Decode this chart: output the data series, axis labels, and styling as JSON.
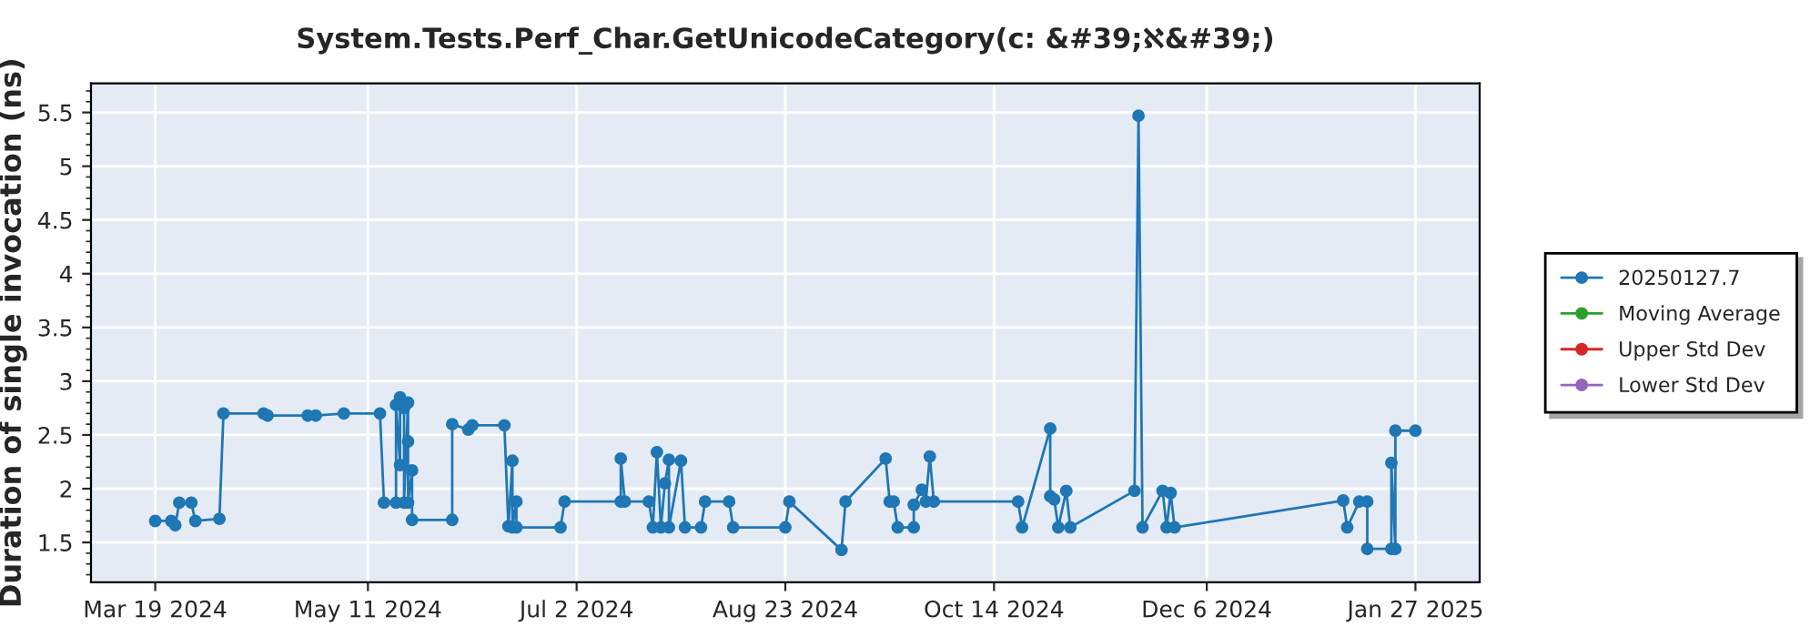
{
  "chart_data": {
    "type": "line",
    "title": "System.Tests.Perf_Char.GetUnicodeCategory(c: &#39;ℵ&#39;)",
    "ylabel": "Duration of single invocation (ns)",
    "x": [
      "2024-03-19",
      "2024-03-23",
      "2024-03-24",
      "2024-03-25",
      "2024-03-28",
      "2024-03-29",
      "2024-04-04",
      "2024-04-05",
      "2024-04-15",
      "2024-04-16",
      "2024-04-26",
      "2024-04-28",
      "2024-05-05",
      "2024-05-14",
      "2024-05-15",
      "2024-05-18",
      "2024-05-18",
      "2024-05-19",
      "2024-05-19",
      "2024-05-20",
      "2024-05-20",
      "2024-05-21",
      "2024-05-21",
      "2024-05-21",
      "2024-05-22",
      "2024-05-22",
      "2024-06-01",
      "2024-06-01",
      "2024-06-05",
      "2024-06-06",
      "2024-06-14",
      "2024-06-15",
      "2024-06-16",
      "2024-06-16",
      "2024-06-17",
      "2024-06-17",
      "2024-06-28",
      "2024-06-29",
      "2024-07-13",
      "2024-07-13",
      "2024-07-14",
      "2024-07-20",
      "2024-07-21",
      "2024-07-22",
      "2024-07-23",
      "2024-07-24",
      "2024-07-25",
      "2024-07-25",
      "2024-07-28",
      "2024-07-29",
      "2024-08-02",
      "2024-08-03",
      "2024-08-09",
      "2024-08-10",
      "2024-08-23",
      "2024-08-24",
      "2024-09-06",
      "2024-09-07",
      "2024-09-17",
      "2024-09-18",
      "2024-09-19",
      "2024-09-20",
      "2024-09-24",
      "2024-09-24",
      "2024-09-26",
      "2024-09-27",
      "2024-09-28",
      "2024-09-29",
      "2024-10-20",
      "2024-10-21",
      "2024-10-28",
      "2024-10-28",
      "2024-10-29",
      "2024-10-30",
      "2024-11-01",
      "2024-11-02",
      "2024-11-18",
      "2024-11-19",
      "2024-11-20",
      "2024-11-25",
      "2024-11-26",
      "2024-11-27",
      "2024-11-28",
      "2025-01-09",
      "2025-01-10",
      "2025-01-13",
      "2025-01-15",
      "2025-01-15",
      "2025-01-21",
      "2025-01-21",
      "2025-01-22",
      "2025-01-22",
      "2025-01-27"
    ],
    "series": [
      {
        "name": "20250127.7",
        "color": "#1f77b4",
        "values": [
          1.7,
          1.7,
          1.66,
          1.87,
          1.87,
          1.7,
          1.72,
          2.7,
          2.7,
          2.68,
          2.68,
          2.68,
          2.7,
          2.7,
          1.87,
          1.87,
          2.78,
          2.22,
          2.85,
          2.75,
          1.87,
          2.8,
          2.44,
          1.87,
          2.17,
          1.71,
          1.71,
          2.6,
          2.55,
          2.59,
          2.59,
          1.65,
          2.26,
          1.64,
          1.88,
          1.64,
          1.64,
          1.88,
          1.88,
          2.28,
          1.88,
          1.88,
          1.64,
          2.34,
          1.64,
          2.05,
          2.27,
          1.64,
          2.26,
          1.64,
          1.64,
          1.88,
          1.88,
          1.64,
          1.64,
          1.88,
          1.43,
          1.88,
          2.28,
          1.88,
          1.88,
          1.64,
          1.64,
          1.85,
          1.99,
          1.88,
          2.3,
          1.88,
          1.88,
          1.64,
          2.56,
          1.93,
          1.9,
          1.64,
          1.98,
          1.64,
          1.98,
          5.47,
          1.64,
          1.98,
          1.64,
          1.96,
          1.64,
          1.89,
          1.64,
          1.88,
          1.88,
          1.44,
          1.44,
          2.24,
          1.44,
          2.54,
          2.54
        ]
      },
      {
        "name": "Moving Average",
        "color": "#2ca02c",
        "values": [
          null,
          null,
          null,
          null,
          null,
          null,
          null,
          null,
          null,
          null,
          null,
          null,
          null,
          null,
          null,
          null,
          null,
          null,
          null,
          null,
          null,
          null,
          null,
          null,
          null,
          null,
          null,
          null,
          null,
          null,
          null,
          null,
          null,
          null,
          null,
          null,
          null,
          null,
          null,
          null,
          null,
          null,
          null,
          null,
          null,
          null,
          null,
          null,
          null,
          null,
          null,
          null,
          null,
          null,
          null,
          null,
          null,
          null,
          null,
          null,
          null,
          null,
          null,
          null,
          null,
          null,
          null,
          null,
          null,
          null,
          null,
          null,
          null,
          null,
          null,
          null,
          null,
          null,
          null,
          null,
          null,
          null,
          null,
          null,
          null,
          null,
          null,
          null,
          null,
          null,
          null,
          null,
          null
        ]
      },
      {
        "name": "Upper Std Dev",
        "color": "#d62728",
        "values": [
          null,
          null,
          null,
          null,
          null,
          null,
          null,
          null,
          null,
          null,
          null,
          null,
          null,
          null,
          null,
          null,
          null,
          null,
          null,
          null,
          null,
          null,
          null,
          null,
          null,
          null,
          null,
          null,
          null,
          null,
          null,
          null,
          null,
          null,
          null,
          null,
          null,
          null,
          null,
          null,
          null,
          null,
          null,
          null,
          null,
          null,
          null,
          null,
          null,
          null,
          null,
          null,
          null,
          null,
          null,
          null,
          null,
          null,
          null,
          null,
          null,
          null,
          null,
          null,
          null,
          null,
          null,
          null,
          null,
          null,
          null,
          null,
          null,
          null,
          null,
          null,
          null,
          null,
          null,
          null,
          null,
          null,
          null,
          null,
          null,
          null,
          null,
          null,
          null,
          null,
          null,
          null,
          null
        ]
      },
      {
        "name": "Lower Std Dev",
        "color": "#9467bd",
        "values": [
          null,
          null,
          null,
          null,
          null,
          null,
          null,
          null,
          null,
          null,
          null,
          null,
          null,
          null,
          null,
          null,
          null,
          null,
          null,
          null,
          null,
          null,
          null,
          null,
          null,
          null,
          null,
          null,
          null,
          null,
          null,
          null,
          null,
          null,
          null,
          null,
          null,
          null,
          null,
          null,
          null,
          null,
          null,
          null,
          null,
          null,
          null,
          null,
          null,
          null,
          null,
          null,
          null,
          null,
          null,
          null,
          null,
          null,
          null,
          null,
          null,
          null,
          null,
          null,
          null,
          null,
          null,
          null,
          null,
          null,
          null,
          null,
          null,
          null,
          null,
          null,
          null,
          null,
          null,
          null,
          null,
          null,
          null,
          null,
          null,
          null,
          null,
          null,
          null,
          null,
          null,
          null,
          null
        ]
      }
    ],
    "xlim": [
      "2024-03-03",
      "2025-02-12"
    ],
    "xticks": [
      {
        "value": "2024-03-19",
        "label": "Mar 19 2024"
      },
      {
        "value": "2024-05-11",
        "label": "May 11 2024"
      },
      {
        "value": "2024-07-02",
        "label": "Jul 2 2024"
      },
      {
        "value": "2024-08-23",
        "label": "Aug 23 2024"
      },
      {
        "value": "2024-10-14",
        "label": "Oct 14 2024"
      },
      {
        "value": "2024-12-06",
        "label": "Dec 6 2024"
      },
      {
        "value": "2025-01-27",
        "label": "Jan 27 2025"
      }
    ],
    "ylim": [
      1.13,
      5.77
    ],
    "yticks": [
      1.5,
      2,
      2.5,
      3,
      3.5,
      4,
      4.5,
      5,
      5.5
    ],
    "grid": true,
    "legend": "right",
    "marker": "circle",
    "line_style": "solid"
  }
}
